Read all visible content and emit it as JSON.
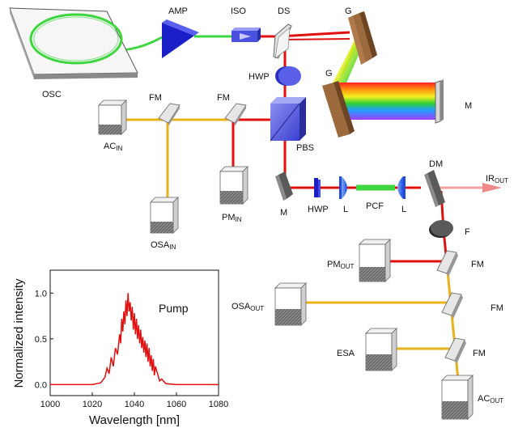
{
  "labels": {
    "osc": "OSC",
    "amp": "AMP",
    "iso": "ISO",
    "ds": "DS",
    "g_top": "G",
    "g_left": "G",
    "m_grating": "M",
    "hwp_top": "HWP",
    "fm_left": "FM",
    "fm_mid": "FM",
    "ac_in": "AC",
    "ac_in_sub": "IN",
    "osa_in": "OSA",
    "osa_in_sub": "IN",
    "pm_in": "PM",
    "pm_in_sub": "IN",
    "pbs": "PBS",
    "m_low": "M",
    "hwp_low": "HWP",
    "l_left": "L",
    "pcf": "PCF",
    "l_right": "L",
    "dm": "DM",
    "ir_out": "IR",
    "ir_out_sub": "OUT",
    "filter": "F",
    "pm_out": "PM",
    "pm_out_sub": "OUT",
    "fm_out1": "FM",
    "osa_out": "OSA",
    "osa_out_sub": "OUT",
    "fm_out2": "FM",
    "esa": "ESA",
    "fm_out3": "FM",
    "ac_out": "AC",
    "ac_out_sub": "OUT"
  },
  "colors": {
    "beam_red": "#e01010",
    "beam_yellow": "#e8b21a",
    "fiber_green": "#3ed63e",
    "amp_blue": "#1a1fc8",
    "grating_brown": "#9c6a3c",
    "spectrum_line": "#e01010"
  },
  "chart_data": {
    "type": "line",
    "title": "Pump",
    "xlabel": "Wavelength [nm]",
    "ylabel": "Normalized intensity",
    "xlim": [
      1000,
      1080
    ],
    "ylim": [
      -0.12,
      1.25
    ],
    "xticks": [
      "1000",
      "1020",
      "1040",
      "1060",
      "1080"
    ],
    "yticks": [
      "0.0",
      "0.5",
      "1.0"
    ],
    "series": [
      {
        "x": [
          1000,
          1010,
          1020,
          1024,
          1026,
          1027,
          1028,
          1029,
          1030,
          1031,
          1032,
          1033,
          1033.5,
          1034,
          1034.5,
          1035,
          1035.5,
          1036,
          1036.5,
          1037,
          1037.5,
          1038,
          1038.5,
          1039,
          1039.5,
          1040,
          1040.5,
          1041,
          1041.5,
          1042,
          1042.5,
          1043,
          1043.5,
          1044,
          1044.5,
          1045,
          1045.5,
          1046,
          1046.5,
          1047,
          1047.5,
          1048,
          1048.5,
          1049,
          1049.5,
          1050,
          1051,
          1052,
          1053,
          1055,
          1060,
          1070,
          1080
        ],
        "y": [
          0.0,
          0.0,
          0.0,
          0.02,
          0.08,
          0.18,
          0.12,
          0.3,
          0.2,
          0.4,
          0.33,
          0.55,
          0.45,
          0.72,
          0.58,
          0.8,
          0.66,
          0.92,
          0.75,
          1.0,
          0.8,
          0.9,
          0.7,
          0.85,
          0.6,
          0.78,
          0.55,
          0.72,
          0.5,
          0.65,
          0.45,
          0.6,
          0.4,
          0.52,
          0.35,
          0.48,
          0.3,
          0.45,
          0.25,
          0.4,
          0.2,
          0.32,
          0.15,
          0.28,
          0.1,
          0.2,
          0.12,
          0.04,
          0.06,
          0.01,
          0.0,
          0.0,
          0.0
        ]
      }
    ]
  }
}
